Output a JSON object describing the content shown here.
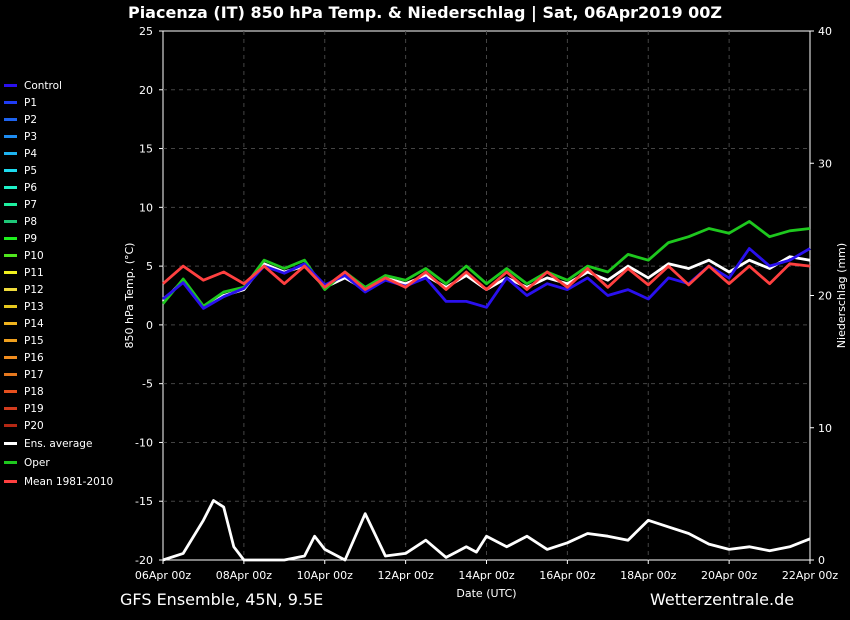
{
  "title": "Piacenza  (IT)  850 hPa Temp. & Niederschlag | Sat, 06Apr2019 00Z",
  "footer": {
    "left": "GFS Ensemble, 45N, 9.5E",
    "right": "Wetterzentrale.de"
  },
  "chart_data": {
    "type": "line",
    "xlabel": "Date (UTC)",
    "ylabel": "850 hPa Temp. (°C)",
    "y2label": "Niederschlag (mm)",
    "x_ticks": [
      "06Apr 00z",
      "08Apr 00z",
      "10Apr 00z",
      "12Apr 00z",
      "14Apr 00z",
      "16Apr 00z",
      "18Apr 00z",
      "20Apr 00z",
      "22Apr 00z"
    ],
    "x_range_days": [
      0,
      16
    ],
    "ylim": [
      -20,
      25
    ],
    "y_ticks": [
      "25",
      "20",
      "15",
      "10",
      "5",
      "0",
      "-5",
      "-10",
      "-15",
      "-20"
    ],
    "y2lim": [
      0,
      40
    ],
    "y2_ticks": [
      "40",
      "30",
      "20",
      "10",
      "0"
    ],
    "grid": true,
    "legend_position": "left",
    "legend": [
      {
        "name": "Control",
        "color": "#2a10ee"
      },
      {
        "name": "P1",
        "color": "#1f3cf5"
      },
      {
        "name": "P2",
        "color": "#1e64f0"
      },
      {
        "name": "P3",
        "color": "#1e8cf0"
      },
      {
        "name": "P4",
        "color": "#1eb4f0"
      },
      {
        "name": "P5",
        "color": "#1edcf0"
      },
      {
        "name": "P6",
        "color": "#1ef0c8"
      },
      {
        "name": "P7",
        "color": "#1ef0a0"
      },
      {
        "name": "P8",
        "color": "#1ec878"
      },
      {
        "name": "P9",
        "color": "#1ef01e"
      },
      {
        "name": "P10",
        "color": "#50e61e"
      },
      {
        "name": "P11",
        "color": "#f0f01e"
      },
      {
        "name": "P12",
        "color": "#f0dc3c"
      },
      {
        "name": "P13",
        "color": "#e6c81e"
      },
      {
        "name": "P14",
        "color": "#f0b41e"
      },
      {
        "name": "P15",
        "color": "#f0a01e"
      },
      {
        "name": "P16",
        "color": "#f08c1e"
      },
      {
        "name": "P17",
        "color": "#e6781e"
      },
      {
        "name": "P18",
        "color": "#e6501e"
      },
      {
        "name": "P19",
        "color": "#d23c1e"
      },
      {
        "name": "P20",
        "color": "#b42814"
      },
      {
        "name": "Ens. average",
        "color": "#ffffff"
      },
      {
        "name": "Oper",
        "color": "#1ec81e"
      },
      {
        "name": "Mean 1981-2010",
        "color": "#ff4040"
      }
    ],
    "series": [
      {
        "name": "Ens. average",
        "axis": "temp",
        "x_days": [
          0,
          0.5,
          1,
          1.5,
          2,
          2.5,
          3,
          3.5,
          4,
          4.5,
          5,
          5.5,
          6,
          6.5,
          7,
          7.5,
          8,
          8.5,
          9,
          9.5,
          10,
          10.5,
          11,
          11.5,
          12,
          12.5,
          13,
          13.5,
          14,
          14.5,
          15,
          15.5,
          16
        ],
        "values": [
          2.0,
          3.8,
          1.5,
          2.5,
          3.0,
          5.2,
          4.5,
          5.0,
          3.2,
          4.0,
          3.0,
          4.0,
          3.5,
          4.2,
          3.2,
          4.2,
          3.0,
          4.0,
          3.2,
          4.0,
          3.5,
          4.5,
          3.8,
          5.0,
          4.0,
          5.2,
          4.8,
          5.5,
          4.5,
          5.5,
          4.8,
          5.8,
          5.5
        ]
      },
      {
        "name": "Oper",
        "axis": "temp",
        "x_days": [
          0,
          0.5,
          1,
          1.5,
          2,
          2.5,
          3,
          3.5,
          4,
          4.5,
          5,
          5.5,
          6,
          6.5,
          7,
          7.5,
          8,
          8.5,
          9,
          9.5,
          10,
          10.5,
          11,
          11.5,
          12,
          12.5,
          13,
          13.5,
          14,
          14.5,
          15,
          15.5,
          16
        ],
        "values": [
          1.8,
          3.9,
          1.6,
          2.8,
          3.2,
          5.5,
          4.8,
          5.5,
          3.0,
          4.5,
          3.2,
          4.2,
          3.8,
          4.8,
          3.5,
          5.0,
          3.5,
          4.8,
          3.5,
          4.5,
          3.8,
          5.0,
          4.5,
          6.0,
          5.5,
          7.0,
          7.5,
          8.2,
          7.8,
          8.8,
          7.5,
          8.0,
          8.2
        ]
      },
      {
        "name": "Control",
        "axis": "temp",
        "x_days": [
          0,
          0.5,
          1,
          1.5,
          2,
          2.5,
          3,
          3.5,
          4,
          4.5,
          5,
          5.5,
          6,
          6.5,
          7,
          7.5,
          8,
          8.5,
          9,
          9.5,
          10,
          10.5,
          11,
          11.5,
          12,
          12.5,
          13,
          13.5,
          14,
          14.5,
          15,
          15.5,
          16
        ],
        "values": [
          2.2,
          3.6,
          1.4,
          2.4,
          3.1,
          5.0,
          4.4,
          5.2,
          3.4,
          4.2,
          2.8,
          3.8,
          3.3,
          4.0,
          2.0,
          2.0,
          1.5,
          4.0,
          2.5,
          3.5,
          3.0,
          4.0,
          2.5,
          3.0,
          2.2,
          4.0,
          3.5,
          5.0,
          4.0,
          6.5,
          5.0,
          5.5,
          6.5
        ]
      },
      {
        "name": "Mean 1981-2010",
        "axis": "temp",
        "x_days": [
          0,
          0.5,
          1,
          1.5,
          2,
          2.5,
          3,
          3.5,
          4,
          4.5,
          5,
          5.5,
          6,
          6.5,
          7,
          7.5,
          8,
          8.5,
          9,
          9.5,
          10,
          10.5,
          11,
          11.5,
          12,
          12.5,
          13,
          13.5,
          14,
          14.5,
          15,
          15.5,
          16
        ],
        "values": [
          3.5,
          5.0,
          3.8,
          4.5,
          3.5,
          5.0,
          3.5,
          5.0,
          3.2,
          4.5,
          3.0,
          4.0,
          3.2,
          4.5,
          3.0,
          4.5,
          3.0,
          4.5,
          3.0,
          4.5,
          3.2,
          4.8,
          3.2,
          4.8,
          3.4,
          5.0,
          3.4,
          5.0,
          3.5,
          5.0,
          3.5,
          5.2,
          5.0
        ]
      },
      {
        "name": "Ens. average",
        "axis": "precip",
        "x_days": [
          0,
          0.5,
          1,
          1.25,
          1.5,
          1.75,
          2,
          2.5,
          3,
          3.5,
          3.75,
          4,
          4.5,
          5,
          5.5,
          6,
          6.5,
          7,
          7.25,
          7.5,
          7.75,
          8,
          8.5,
          9,
          9.5,
          10,
          10.5,
          11,
          11.5,
          12,
          12.5,
          13,
          13.5,
          14,
          14.5,
          15,
          15.5,
          16
        ],
        "values": [
          0,
          0.5,
          3.0,
          4.5,
          4.0,
          1.0,
          0,
          0,
          0,
          0.3,
          1.8,
          0.8,
          0,
          3.5,
          0.3,
          0.5,
          1.5,
          0.2,
          0.6,
          1.0,
          0.6,
          1.8,
          1.0,
          1.8,
          0.8,
          1.3,
          2.0,
          1.8,
          1.5,
          3.0,
          2.5,
          2.0,
          1.2,
          0.8,
          1.0,
          0.7,
          1.0,
          1.6
        ]
      }
    ]
  }
}
